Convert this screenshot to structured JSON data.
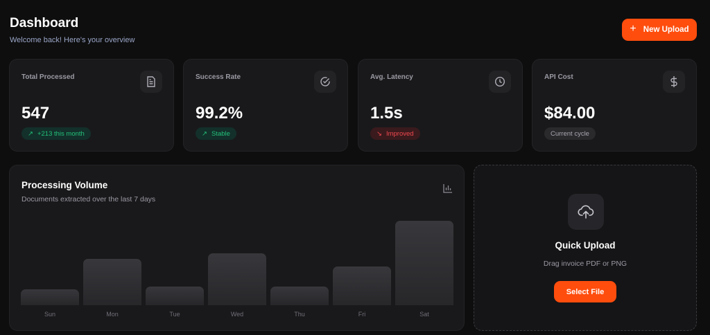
{
  "header": {
    "title": "Dashboard",
    "subtitle": "Welcome back! Here's your overview",
    "new_upload_label": "New Upload"
  },
  "stats": [
    {
      "label": "Total Processed",
      "value": "547",
      "badge": "+213 this month",
      "badge_tone": "positive",
      "icon": "file-text-icon"
    },
    {
      "label": "Success Rate",
      "value": "99.2%",
      "badge": "Stable",
      "badge_tone": "positive",
      "icon": "check-circle-icon"
    },
    {
      "label": "Avg. Latency",
      "value": "1.5s",
      "badge": "Improved",
      "badge_tone": "negative",
      "icon": "clock-icon"
    },
    {
      "label": "API Cost",
      "value": "$84.00",
      "badge": "Current cycle",
      "badge_tone": "neutral",
      "icon": "dollar-icon"
    }
  ],
  "colors": {
    "accent": "#ff4d0d",
    "positive": "#23c07a",
    "negative": "#f0484f"
  },
  "volume": {
    "title": "Processing Volume",
    "subtitle": "Documents extracted over the last 7 days"
  },
  "chart_data": {
    "type": "bar",
    "categories": [
      "Sun",
      "Mon",
      "Tue",
      "Wed",
      "Thu",
      "Fri",
      "Sat"
    ],
    "values": [
      23,
      66,
      27,
      74,
      27,
      55,
      120
    ],
    "ylim": [
      0,
      120
    ],
    "grid": false
  },
  "quick_upload": {
    "title": "Quick Upload",
    "subtitle": "Drag invoice PDF or PNG",
    "button": "Select File"
  }
}
